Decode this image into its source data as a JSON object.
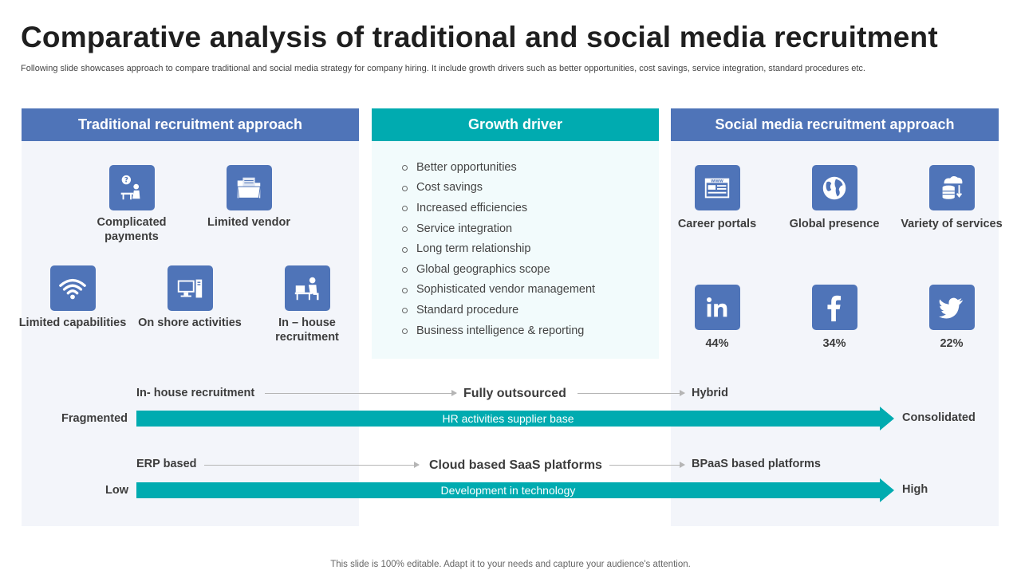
{
  "title": "Comparative analysis of traditional and social media recruitment",
  "subtitle": "Following slide showcases approach to compare traditional and social media strategy for company hiring. It include growth drivers such as better opportunities, cost savings, service integration, standard procedures etc.",
  "panels": {
    "traditional": {
      "header": "Traditional recruitment approach",
      "items": [
        {
          "label": "Complicated payments",
          "icon": "payment-person-icon"
        },
        {
          "label": "Limited vendor",
          "icon": "folder-icon"
        },
        {
          "label": "Limited capabilities",
          "icon": "wifi-icon"
        },
        {
          "label": "On shore activities",
          "icon": "computer-icon"
        },
        {
          "label": "In – house recruitment",
          "icon": "desk-worker-icon"
        }
      ]
    },
    "growth": {
      "header": "Growth driver",
      "items": [
        "Better opportunities",
        "Cost savings",
        "Increased efficiencies",
        "Service integration",
        "Long term relationship",
        "Global geographics scope",
        "Sophisticated vendor management",
        "Standard procedure",
        "Business intelligence & reporting"
      ]
    },
    "social": {
      "header": "Social media recruitment approach",
      "items": [
        {
          "label": "Career portals",
          "icon": "web-portal-icon"
        },
        {
          "label": "Global presence",
          "icon": "globe-icon"
        },
        {
          "label": "Variety of services",
          "icon": "cloud-database-icon"
        }
      ],
      "networks": [
        {
          "name": "linkedin",
          "value": "44%",
          "icon": "linkedin-icon"
        },
        {
          "name": "facebook",
          "value": "34%",
          "icon": "facebook-icon"
        },
        {
          "name": "twitter",
          "value": "22%",
          "icon": "twitter-icon"
        }
      ]
    }
  },
  "flow1": {
    "start": "In- house  recruitment",
    "middle": "Fully outsourced",
    "end": "Hybrid",
    "left_label": "Fragmented",
    "bar_label": "HR activities supplier base",
    "right_label": "Consolidated"
  },
  "flow2": {
    "start": "ERP based",
    "middle": "Cloud based SaaS platforms",
    "end": "BPaaS based platforms",
    "left_label": "Low",
    "bar_label": "Development in technology",
    "right_label": "High"
  },
  "colors": {
    "blue": "#4f74b8",
    "teal": "#00abb0"
  },
  "footer": "This slide is 100% editable. Adapt it to your needs and capture your audience's attention."
}
